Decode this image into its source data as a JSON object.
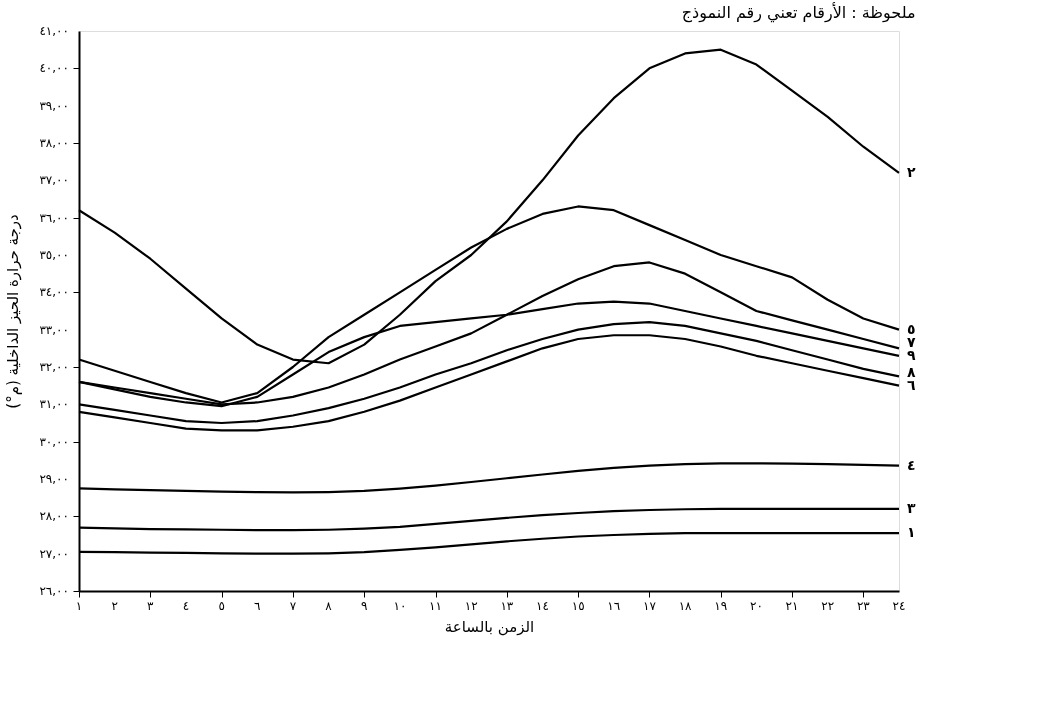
{
  "chart_data": {
    "type": "line",
    "annotations": [
      "ملحوظة : الأرقام تعني رقم النموذج"
    ],
    "xlabel": "الزمن بالساعة",
    "ylabel": "درجة حرارة الحيز الداخلية (م°)",
    "x": [
      1,
      2,
      3,
      4,
      5,
      6,
      7,
      8,
      9,
      10,
      11,
      12,
      13,
      14,
      15,
      16,
      17,
      18,
      19,
      20,
      21,
      22,
      23,
      24
    ],
    "xlim": [
      1,
      24
    ],
    "xticks": [
      {
        "value": 1,
        "label": "١"
      },
      {
        "value": 2,
        "label": "٢"
      },
      {
        "value": 3,
        "label": "٣"
      },
      {
        "value": 4,
        "label": "٤"
      },
      {
        "value": 5,
        "label": "٥"
      },
      {
        "value": 6,
        "label": "٦"
      },
      {
        "value": 7,
        "label": "٧"
      },
      {
        "value": 8,
        "label": "٨"
      },
      {
        "value": 9,
        "label": "٩"
      },
      {
        "value": 10,
        "label": "١٠"
      },
      {
        "value": 11,
        "label": "١١"
      },
      {
        "value": 12,
        "label": "١٢"
      },
      {
        "value": 13,
        "label": "١٣"
      },
      {
        "value": 14,
        "label": "١٤"
      },
      {
        "value": 15,
        "label": "١٥"
      },
      {
        "value": 16,
        "label": "١٦"
      },
      {
        "value": 17,
        "label": "١٧"
      },
      {
        "value": 18,
        "label": "١٨"
      },
      {
        "value": 19,
        "label": "١٩"
      },
      {
        "value": 20,
        "label": "٢٠"
      },
      {
        "value": 21,
        "label": "٢١"
      },
      {
        "value": 22,
        "label": "٢٢"
      },
      {
        "value": 23,
        "label": "٢٣"
      },
      {
        "value": 24,
        "label": "٢٤"
      }
    ],
    "ylim": [
      26,
      41
    ],
    "yticks": [
      {
        "value": 26,
        "label": "٢٦,٠٠"
      },
      {
        "value": 27,
        "label": "٢٧,٠٠"
      },
      {
        "value": 28,
        "label": "٢٨,٠٠"
      },
      {
        "value": 29,
        "label": "٢٩,٠٠"
      },
      {
        "value": 30,
        "label": "٣٠,٠٠"
      },
      {
        "value": 31,
        "label": "٣١,٠٠"
      },
      {
        "value": 32,
        "label": "٣٢,٠٠"
      },
      {
        "value": 33,
        "label": "٣٣,٠٠"
      },
      {
        "value": 34,
        "label": "٣٤,٠٠"
      },
      {
        "value": 35,
        "label": "٣٥,٠٠"
      },
      {
        "value": 36,
        "label": "٣٦,٠٠"
      },
      {
        "value": 37,
        "label": "٣٧,٠٠"
      },
      {
        "value": 38,
        "label": "٣٨,٠٠"
      },
      {
        "value": 39,
        "label": "٣٩,٠٠"
      },
      {
        "value": 40,
        "label": "٤٠,٠٠"
      },
      {
        "value": 41,
        "label": "٤١,٠٠"
      }
    ],
    "grid": false,
    "marker": "none",
    "line_style": "solid",
    "series": [
      {
        "name": "١",
        "color": "#000000",
        "values": [
          27.05,
          27.04,
          27.03,
          27.02,
          27.01,
          27.0,
          27.0,
          27.01,
          27.04,
          27.1,
          27.17,
          27.25,
          27.33,
          27.4,
          27.46,
          27.5,
          27.53,
          27.55,
          27.55,
          27.55,
          27.55,
          27.55,
          27.55,
          27.55
        ]
      },
      {
        "name": "٢",
        "color": "#000000",
        "values": [
          36.2,
          35.6,
          34.9,
          34.1,
          33.3,
          32.6,
          32.2,
          32.1,
          32.6,
          33.4,
          34.3,
          35.0,
          35.9,
          37.0,
          38.2,
          39.2,
          40.0,
          40.4,
          40.5,
          40.1,
          39.4,
          38.7,
          37.9,
          37.2
        ]
      },
      {
        "name": "٣",
        "color": "#000000",
        "values": [
          27.7,
          27.68,
          27.66,
          27.65,
          27.64,
          27.63,
          27.63,
          27.64,
          27.67,
          27.72,
          27.8,
          27.88,
          27.96,
          28.03,
          28.09,
          28.14,
          28.17,
          28.19,
          28.2,
          28.2,
          28.2,
          28.2,
          28.2,
          28.2
        ]
      },
      {
        "name": "٤",
        "color": "#000000",
        "values": [
          28.75,
          28.72,
          28.7,
          28.68,
          28.66,
          28.65,
          28.64,
          28.65,
          28.68,
          28.74,
          28.82,
          28.92,
          29.02,
          29.12,
          29.22,
          29.3,
          29.36,
          29.4,
          29.42,
          29.42,
          29.41,
          29.4,
          29.38,
          29.36
        ]
      },
      {
        "name": "٥",
        "color": "#000000",
        "values": [
          32.2,
          31.9,
          31.6,
          31.3,
          31.05,
          31.3,
          32.0,
          32.8,
          33.4,
          34.0,
          34.6,
          35.2,
          35.7,
          36.1,
          36.3,
          36.2,
          35.8,
          35.4,
          35.0,
          34.7,
          34.4,
          33.8,
          33.3,
          33.0
        ]
      },
      {
        "name": "٦",
        "color": "#000000",
        "values": [
          30.8,
          30.65,
          30.5,
          30.35,
          30.3,
          30.3,
          30.4,
          30.55,
          30.8,
          31.1,
          31.45,
          31.8,
          32.15,
          32.5,
          32.75,
          32.85,
          32.85,
          32.75,
          32.55,
          32.3,
          32.1,
          31.9,
          31.7,
          31.5
        ]
      },
      {
        "name": "٧",
        "color": "#000000",
        "values": [
          31.6,
          31.45,
          31.3,
          31.15,
          31.0,
          31.05,
          31.2,
          31.45,
          31.8,
          32.2,
          32.55,
          32.9,
          33.4,
          33.9,
          34.35,
          34.7,
          34.8,
          34.5,
          34.0,
          33.5,
          33.25,
          33.0,
          32.75,
          32.5
        ]
      },
      {
        "name": "٨",
        "color": "#000000",
        "values": [
          31.0,
          30.85,
          30.7,
          30.55,
          30.5,
          30.55,
          30.7,
          30.9,
          31.15,
          31.45,
          31.8,
          32.1,
          32.45,
          32.75,
          33.0,
          33.15,
          33.2,
          33.1,
          32.9,
          32.7,
          32.45,
          32.2,
          31.95,
          31.75
        ]
      },
      {
        "name": "٩",
        "color": "#000000",
        "values": [
          31.6,
          31.4,
          31.2,
          31.05,
          30.95,
          31.2,
          31.8,
          32.4,
          32.8,
          33.1,
          33.2,
          33.3,
          33.4,
          33.55,
          33.7,
          33.75,
          33.7,
          33.5,
          33.3,
          33.1,
          32.9,
          32.7,
          32.5,
          32.3
        ]
      }
    ]
  }
}
